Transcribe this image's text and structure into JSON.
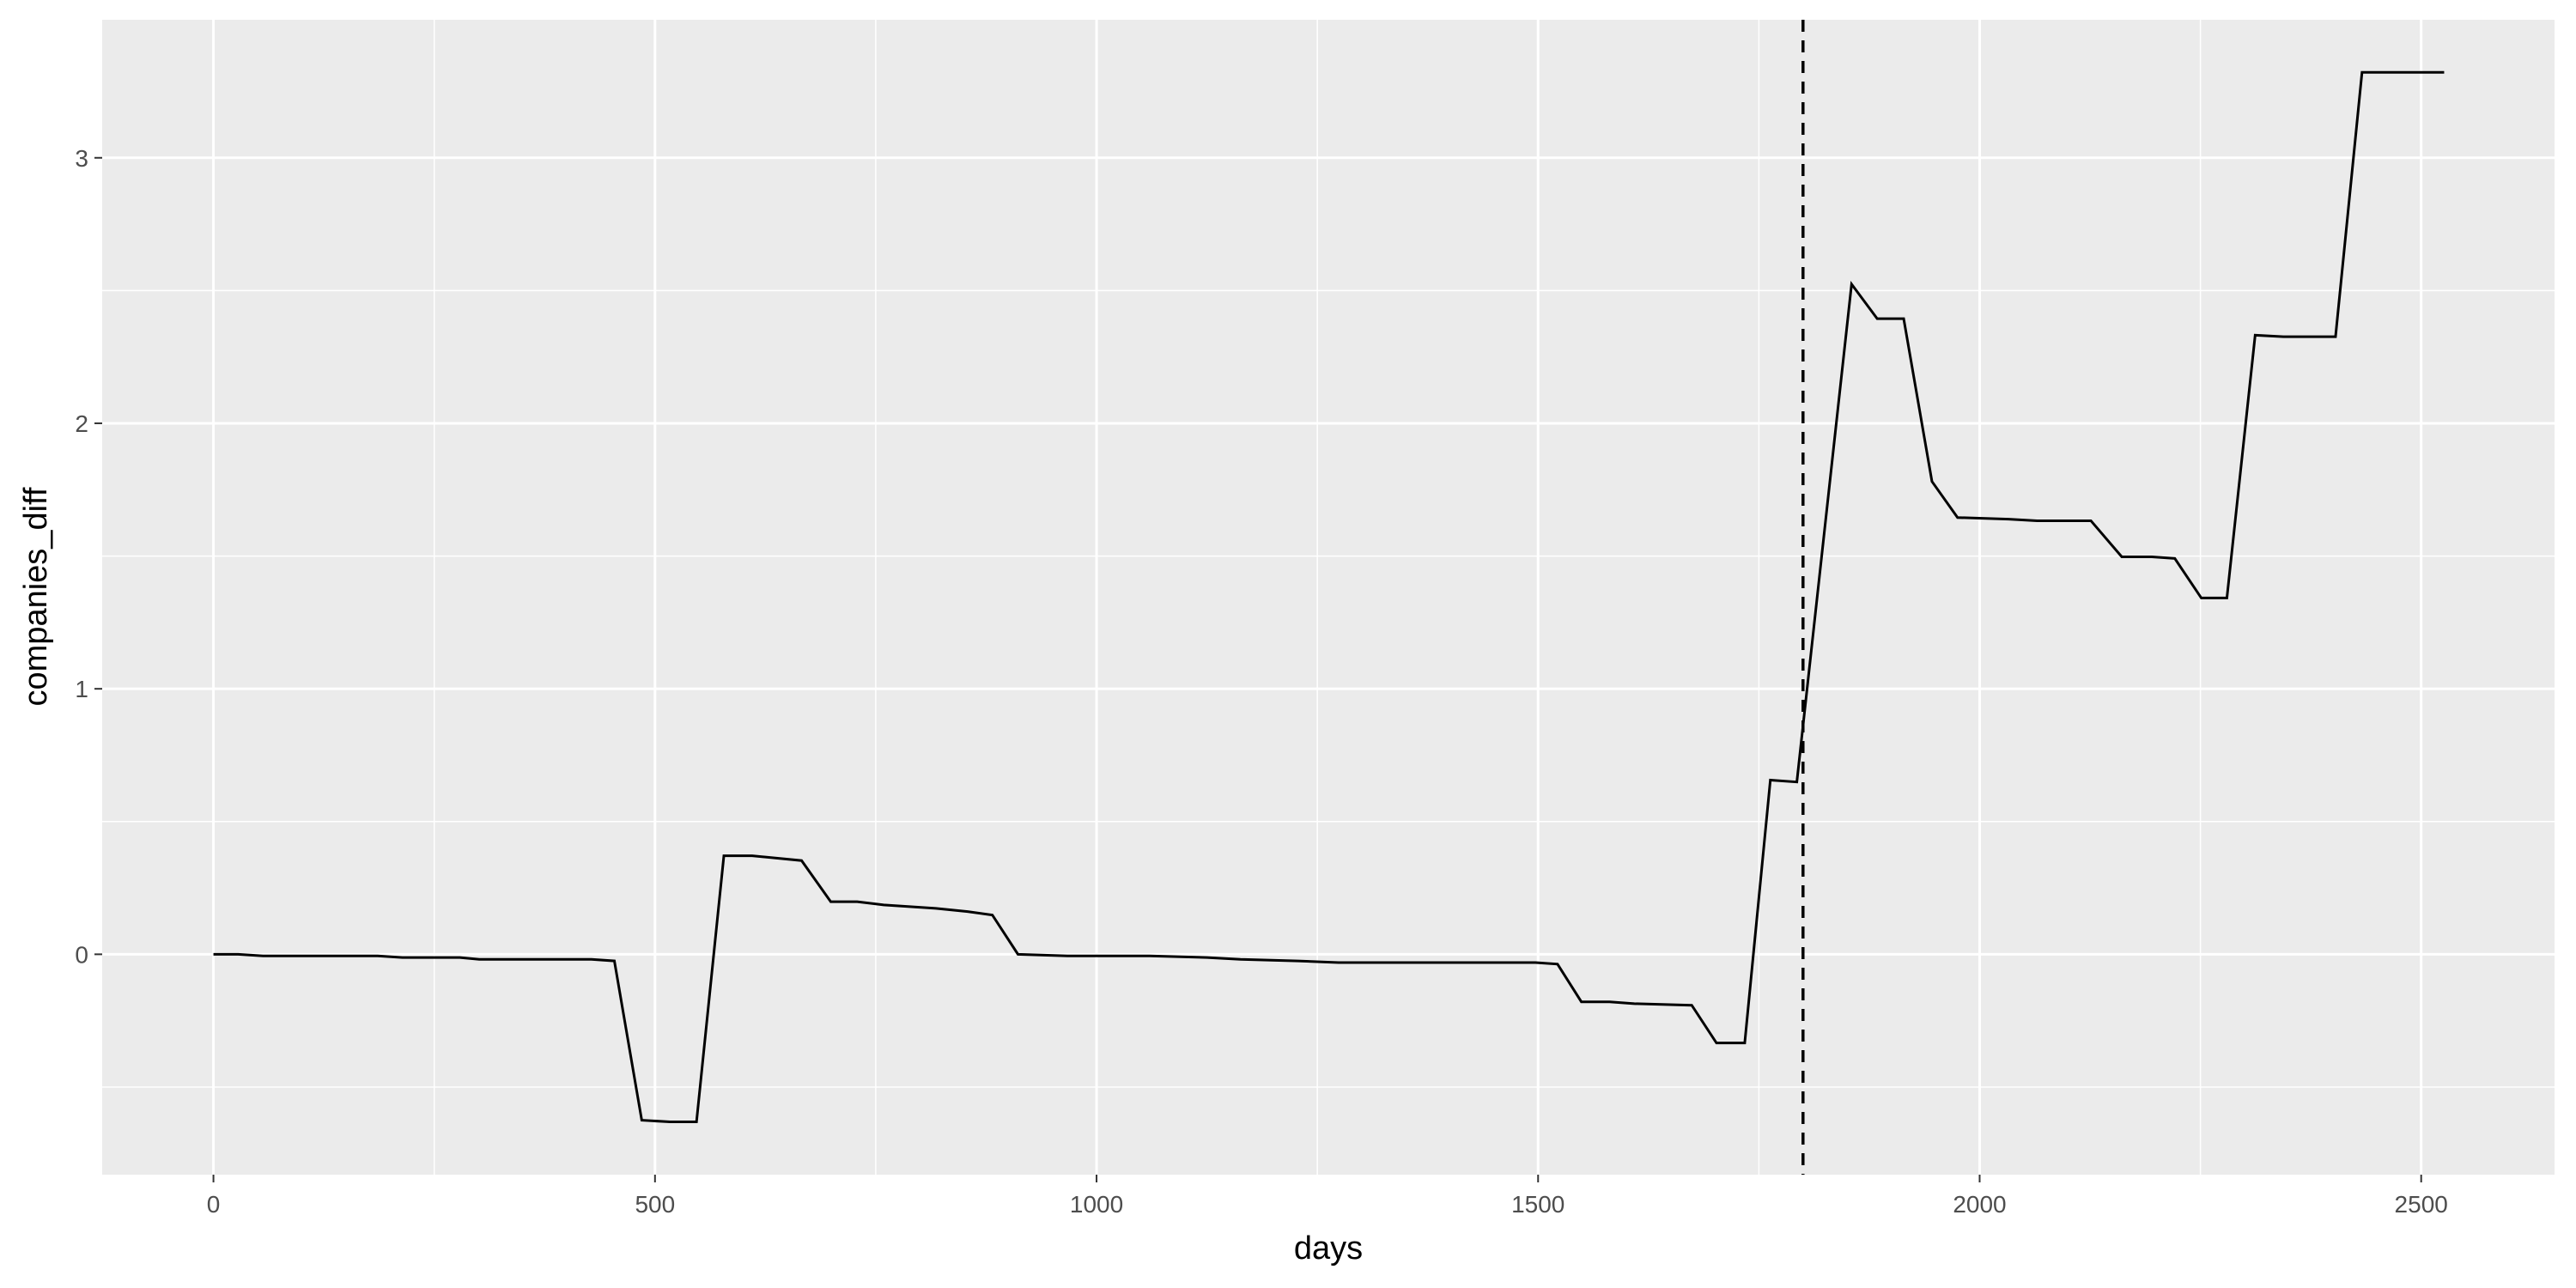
{
  "chart_data": {
    "type": "line",
    "xlabel": "days",
    "ylabel": "companies_diff",
    "x": [
      0,
      28,
      56,
      102,
      186,
      214,
      279,
      301,
      428,
      454,
      485,
      517,
      547,
      578,
      610,
      666,
      699,
      729,
      759,
      818,
      854,
      882,
      911,
      967,
      1060,
      1125,
      1163,
      1228,
      1274,
      1497,
      1522,
      1549,
      1581,
      1609,
      1674,
      1702,
      1734,
      1763,
      1793,
      1855,
      1884,
      1914,
      1946,
      1975,
      2033,
      2065,
      2126,
      2161,
      2195,
      2221,
      2251,
      2280,
      2312,
      2344,
      2375,
      2403,
      2433,
      2526
    ],
    "y": [
      0,
      0,
      -0.006,
      -0.006,
      -0.006,
      -0.012,
      -0.012,
      -0.019,
      -0.019,
      -0.025,
      -0.625,
      -0.631,
      -0.631,
      0.371,
      0.371,
      0.353,
      0.198,
      0.198,
      0.186,
      0.173,
      0.161,
      0.148,
      0,
      -0.006,
      -0.006,
      -0.012,
      -0.019,
      -0.025,
      -0.031,
      -0.031,
      -0.037,
      -0.179,
      -0.179,
      -0.186,
      -0.192,
      -0.334,
      -0.334,
      0.656,
      0.649,
      2.524,
      2.394,
      2.394,
      1.781,
      1.645,
      1.639,
      1.633,
      1.633,
      1.497,
      1.497,
      1.491,
      1.342,
      1.342,
      2.332,
      2.326,
      2.326,
      2.326,
      3.322,
      3.322
    ],
    "color": "#000000",
    "vline": 1800,
    "xlim": [
      -126,
      2651
    ],
    "ylim": [
      -0.83,
      3.52
    ],
    "xticks": [
      0,
      500,
      1000,
      1500,
      2000,
      2500
    ],
    "yticks": [
      0,
      1,
      2,
      3
    ],
    "x_minor_grid": [
      250,
      750,
      1250,
      1750,
      2250
    ],
    "y_minor_grid": [
      -0.5,
      0.5,
      1.5,
      2.5
    ],
    "grid": true
  }
}
